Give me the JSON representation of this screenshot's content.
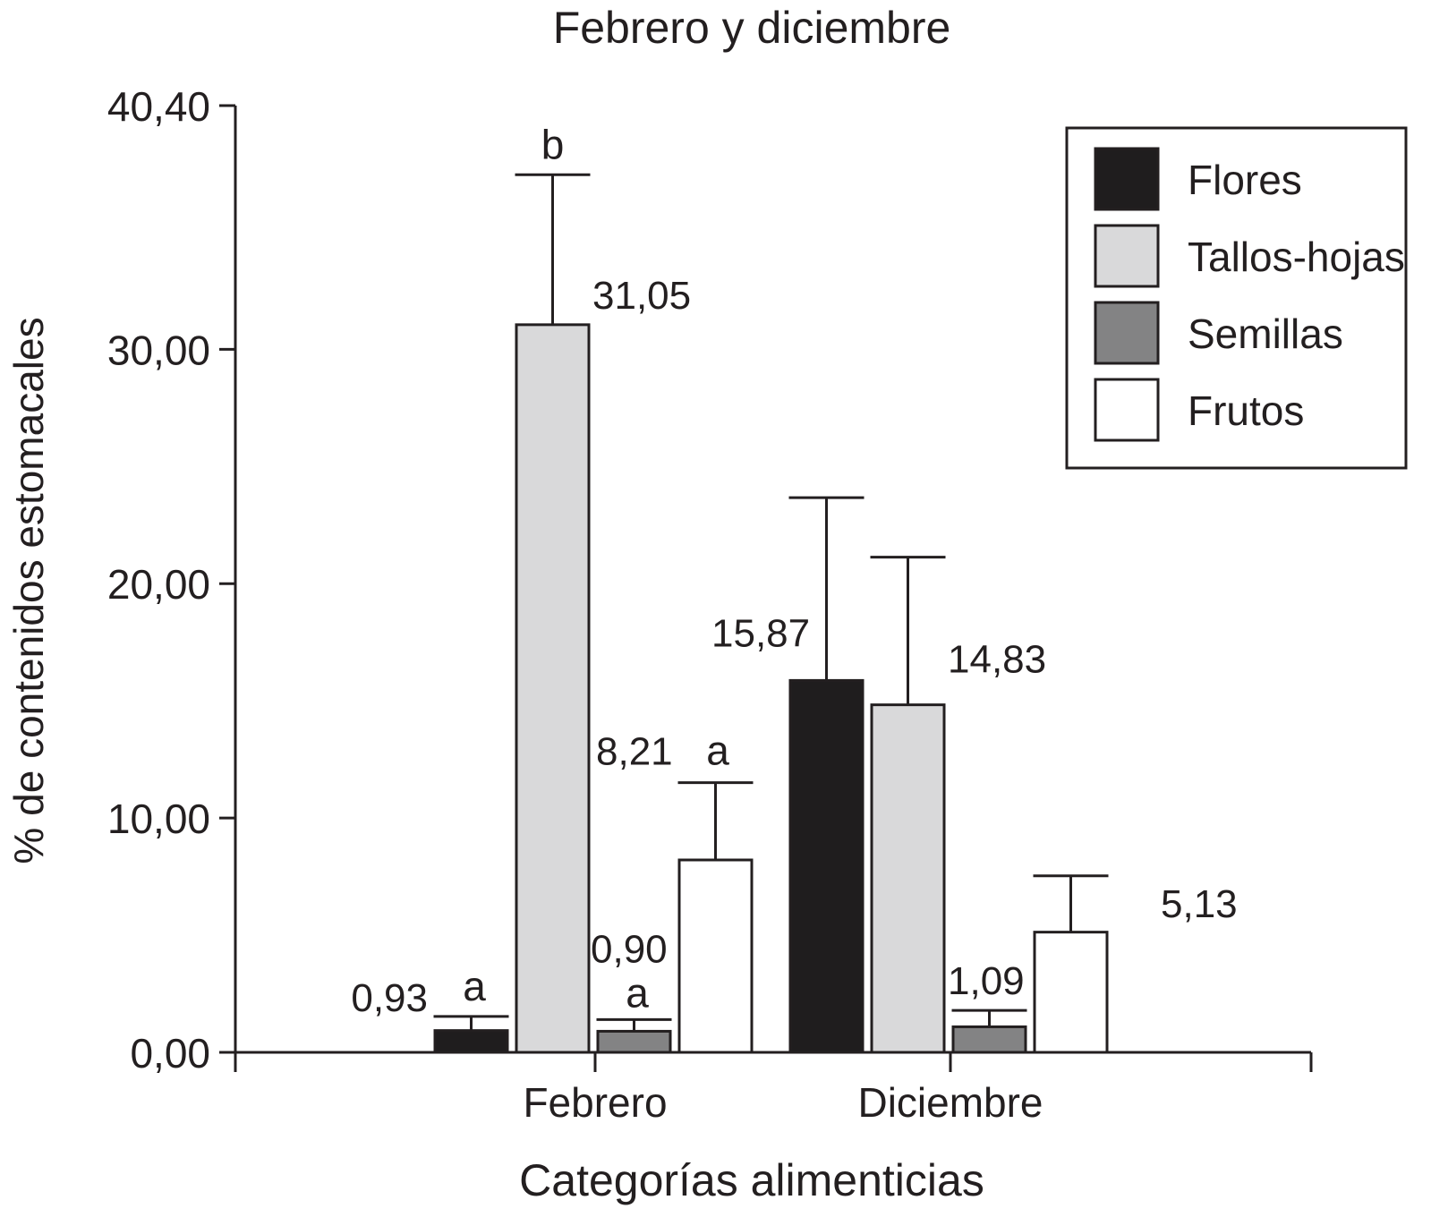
{
  "chart_data": {
    "type": "bar",
    "title": "Febrero y diciembre",
    "xlabel": "Categorías alimenticias",
    "ylabel": "% de contenidos estomacales",
    "ylim": [
      0,
      40.4
    ],
    "yticks": [
      "0,00",
      "10,00",
      "20,00",
      "30,00",
      "40,40"
    ],
    "grid": false,
    "legend_position": "top-right",
    "categories": [
      "Febrero",
      "Diciembre"
    ],
    "series": [
      {
        "name": "Flores",
        "color": "#1f1d1e",
        "values": [
          0.93,
          15.87
        ],
        "error": [
          0.6,
          7.8
        ],
        "labels": [
          "0,93",
          "15,87"
        ],
        "letters": [
          "a",
          ""
        ]
      },
      {
        "name": "Tallos-hojas",
        "color": "#d9d9da",
        "values": [
          31.05,
          14.83
        ],
        "error": [
          6.4,
          6.3
        ],
        "labels": [
          "31,05",
          "14,83"
        ],
        "letters": [
          "b",
          ""
        ]
      },
      {
        "name": "Semillas",
        "color": "#838384",
        "values": [
          0.9,
          1.09
        ],
        "error": [
          0.5,
          0.7
        ],
        "labels": [
          "0,90",
          "1,09"
        ],
        "letters": [
          "a",
          ""
        ]
      },
      {
        "name": "Frutos",
        "color": "#ffffff",
        "values": [
          8.21,
          5.13
        ],
        "error": [
          3.3,
          2.4
        ],
        "labels": [
          "8,21",
          "5,13"
        ],
        "letters": [
          "a",
          ""
        ]
      }
    ]
  }
}
